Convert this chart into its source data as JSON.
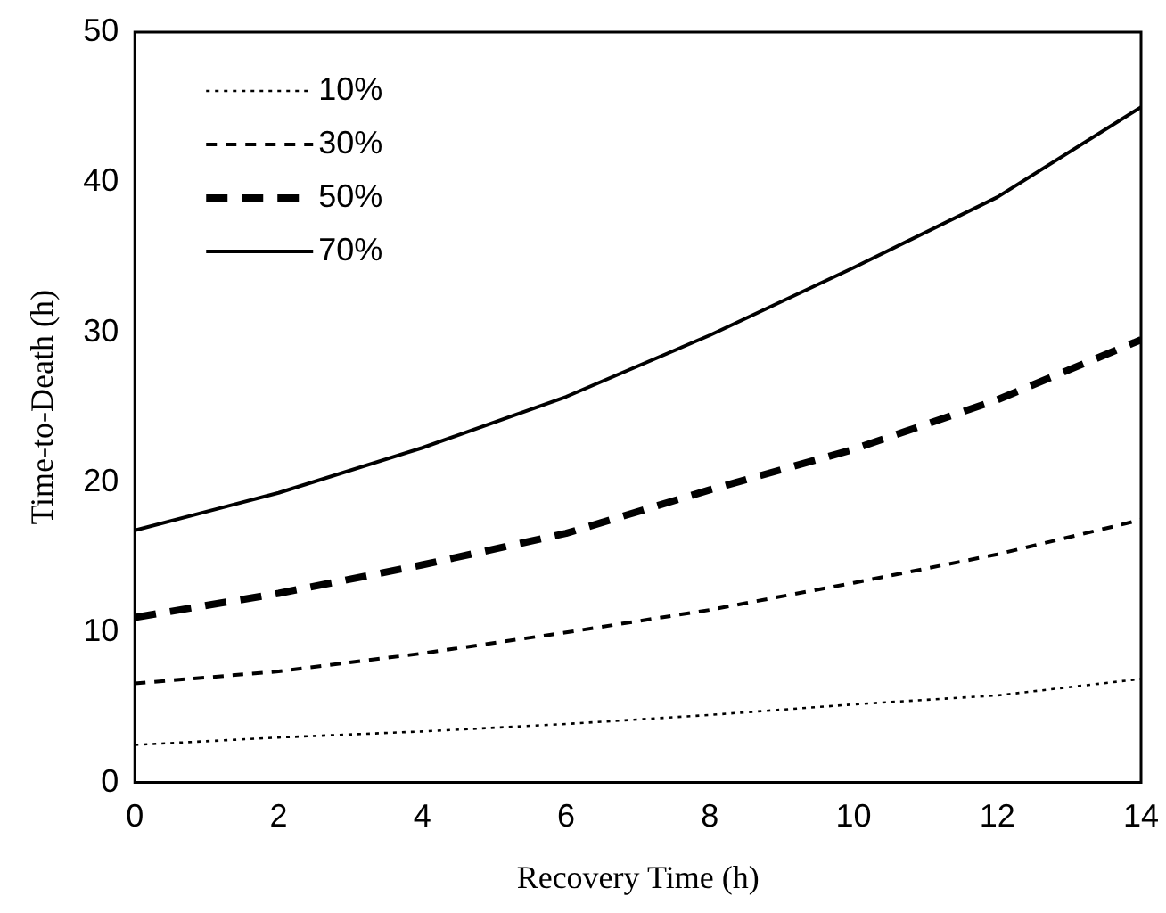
{
  "chart_data": {
    "type": "line",
    "xlabel": "Recovery Time (h)",
    "ylabel": "Time-to-Death (h)",
    "x": [
      0,
      2,
      4,
      6,
      8,
      10,
      12,
      14
    ],
    "xlim": [
      0,
      14
    ],
    "xticks": [
      0,
      2,
      4,
      6,
      8,
      10,
      12,
      14
    ],
    "ylim": [
      0,
      50
    ],
    "yticks": [
      0,
      10,
      20,
      30,
      40,
      50
    ],
    "grid": false,
    "legend": "top left",
    "marker": "none",
    "series": [
      {
        "name": "10%",
        "color": "#000000",
        "line_style": "dotted",
        "values": [
          2.5,
          3,
          3.4,
          3.9,
          4.5,
          5.2,
          5.8,
          6.9
        ]
      },
      {
        "name": "30%",
        "color": "#000000",
        "line_style": "dashed",
        "values": [
          6.6,
          7.4,
          8.6,
          10,
          11.5,
          13.3,
          15.2,
          17.5
        ]
      },
      {
        "name": "50%",
        "color": "#000000",
        "line_style": "dashed",
        "values": [
          11,
          12.6,
          14.5,
          16.6,
          19.5,
          22.2,
          25.5,
          29.5
        ]
      },
      {
        "name": "70%",
        "color": "#000000",
        "line_style": "solid",
        "values": [
          16.8,
          19.3,
          22.3,
          25.7,
          29.8,
          34.3,
          39,
          45
        ]
      }
    ]
  }
}
